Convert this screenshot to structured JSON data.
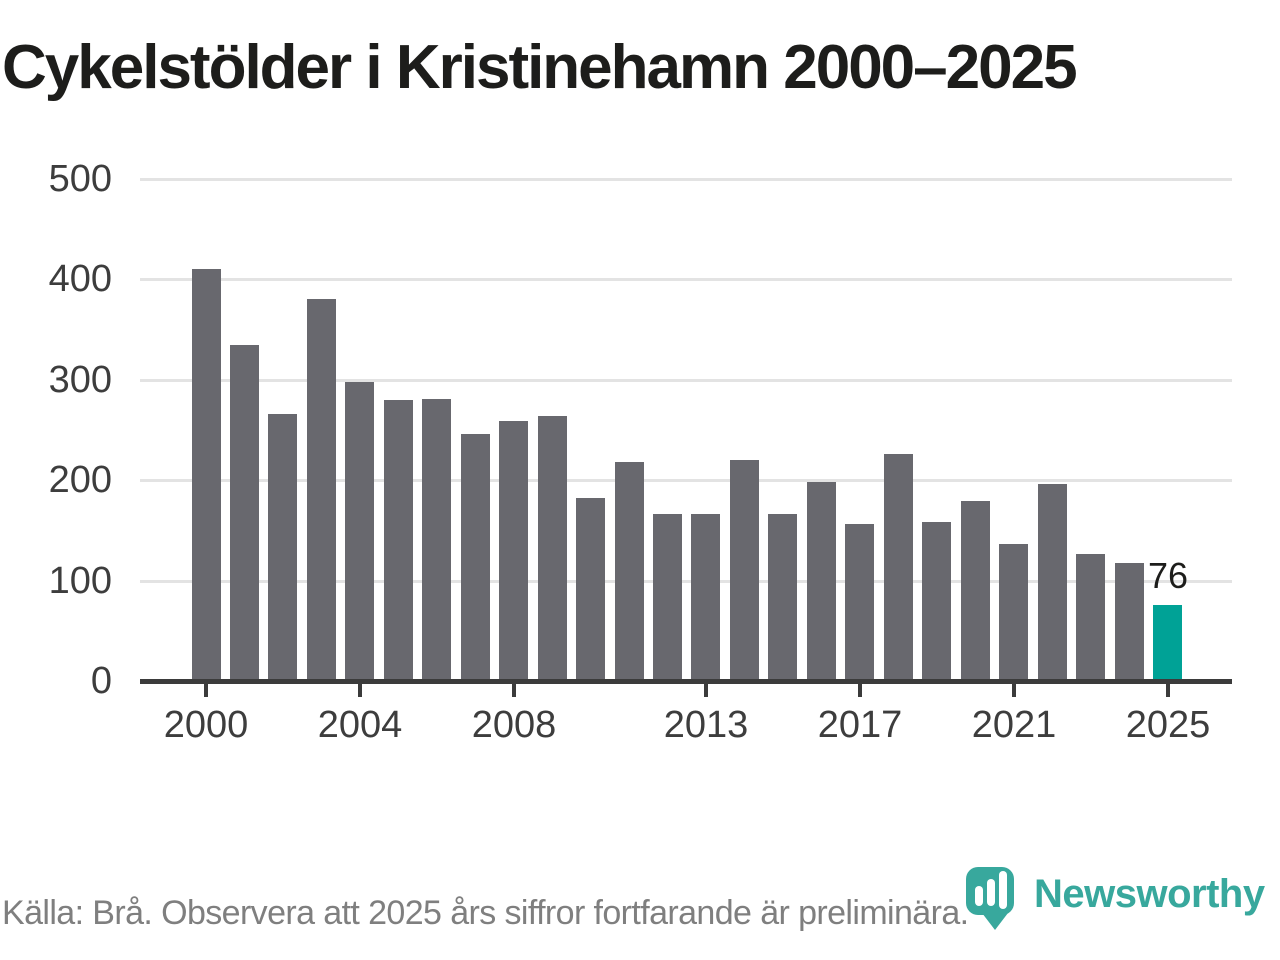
{
  "title": "Cykelstölder i Kristinehamn 2000–2025",
  "footer": {
    "source_note": "Källa: Brå. Observera att 2025 års siffror fortfarande är preliminära."
  },
  "branding": {
    "logo_text": "Newsworthy",
    "logo_color": "#38a89d"
  },
  "colors": {
    "bar": "#68686e",
    "highlight": "#00a296",
    "gridline": "#e3e3e3",
    "axis": "#3b3b3b",
    "tick_text": "#3d3d3d",
    "title_text": "#1d1d1b",
    "footer_text": "#7f7f7f"
  },
  "chart_data": {
    "type": "bar",
    "title": "Cykelstölder i Kristinehamn 2000–2025",
    "xlabel": "",
    "ylabel": "",
    "categories": [
      2000,
      2001,
      2002,
      2003,
      2004,
      2005,
      2006,
      2007,
      2008,
      2009,
      2010,
      2011,
      2012,
      2013,
      2014,
      2015,
      2016,
      2017,
      2018,
      2019,
      2020,
      2021,
      2022,
      2023,
      2024,
      2025
    ],
    "values": [
      410,
      335,
      266,
      380,
      298,
      280,
      281,
      246,
      259,
      264,
      182,
      218,
      166,
      166,
      220,
      166,
      198,
      156,
      226,
      158,
      179,
      136,
      196,
      126,
      118,
      76
    ],
    "highlight_category": 2025,
    "highlight_value_label": "76",
    "ylim": [
      0,
      500
    ],
    "yticks": [
      0,
      100,
      200,
      300,
      400,
      500
    ],
    "xticks": [
      2000,
      2004,
      2008,
      2013,
      2017,
      2021,
      2025
    ],
    "grid": "horizontal",
    "legend": "none"
  }
}
